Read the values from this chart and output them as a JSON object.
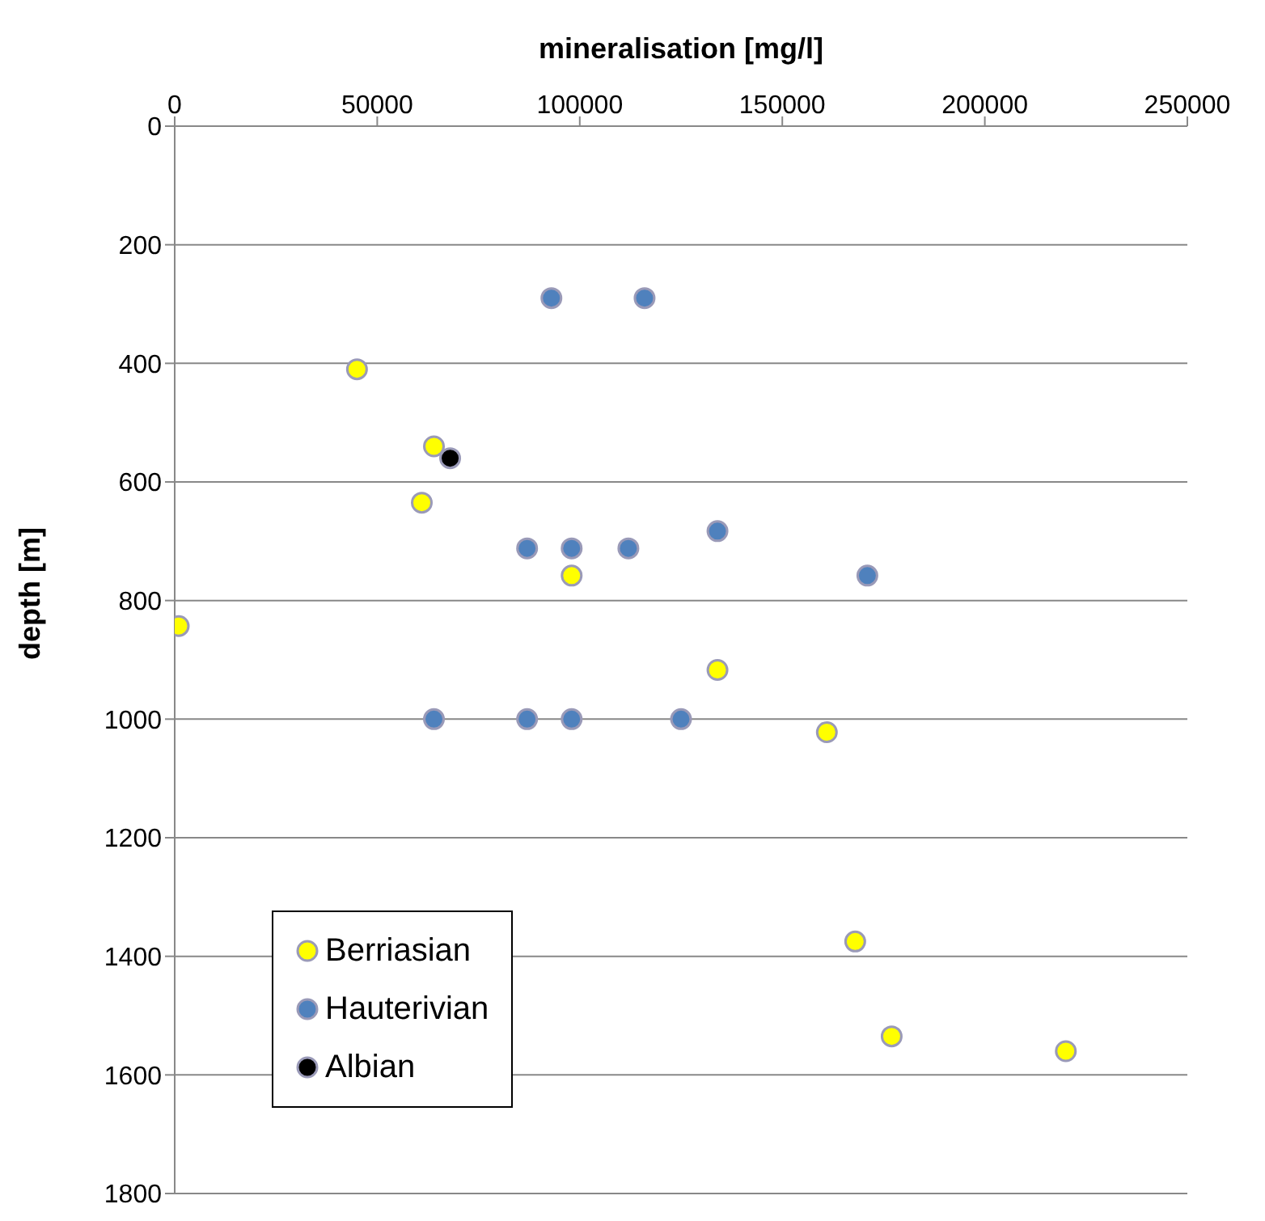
{
  "chart_data": {
    "type": "scatter",
    "xlabel": "mineralisation [mg/l]",
    "ylabel": "depth [m]",
    "xlim": [
      0,
      250000
    ],
    "xticks": [
      0,
      50000,
      100000,
      150000,
      200000,
      250000
    ],
    "ylim": [
      1800,
      0
    ],
    "yticks": [
      0,
      200,
      400,
      600,
      800,
      1000,
      1200,
      1400,
      1600,
      1800
    ],
    "grid": "y",
    "legend": "bottom left",
    "marker": "circle",
    "series": [
      {
        "name": "Berriasian",
        "color": "#ffff00",
        "x": [
          45000,
          64000,
          61000,
          98000,
          1000,
          134000,
          161000,
          168000,
          177000,
          220000
        ],
        "values": [
          410,
          540,
          635,
          758,
          843,
          917,
          1022,
          1375,
          1535,
          1560
        ]
      },
      {
        "name": "Hauterivian",
        "color": "#4f81bd",
        "x": [
          93000,
          116000,
          87000,
          98000,
          112000,
          134000,
          171000,
          64000,
          87000,
          98000,
          125000
        ],
        "values": [
          290,
          290,
          712,
          712,
          712,
          683,
          758,
          1000,
          1000,
          1000,
          1000
        ]
      },
      {
        "name": "Albian",
        "color": "#000000",
        "x": [
          68000
        ],
        "values": [
          560
        ]
      }
    ]
  }
}
